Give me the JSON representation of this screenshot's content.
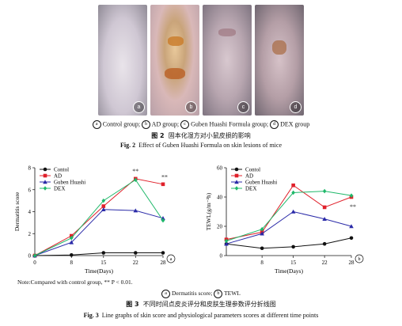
{
  "fig2": {
    "photo_labels": [
      "a",
      "b",
      "c",
      "d"
    ],
    "legend": [
      {
        "key": "a",
        "text": "Control group"
      },
      {
        "key": "b",
        "text": "AD group"
      },
      {
        "key": "c",
        "text": "Guben Huashi Formula group"
      },
      {
        "key": "d",
        "text": "DEX group"
      }
    ],
    "caption_cn_label": "图 2",
    "caption_cn_text": "固本化湿方对小鼠皮损的影响",
    "caption_en_label": "Fig. 2",
    "caption_en_text": "Effect of Guben Huashi Formula on skin lesions of mice"
  },
  "colors": {
    "control": "#111111",
    "ad": "#e0202a",
    "guben": "#2a2aa8",
    "dex": "#1fb86a"
  },
  "chart_data": [
    {
      "type": "line",
      "panel_label": "a",
      "ylabel": "Dermatitis score",
      "xlabel": "Time(Days)",
      "x": [
        0,
        8,
        15,
        22,
        28
      ],
      "xticks": [
        "0",
        "8",
        "15",
        "22",
        "28"
      ],
      "ylim": [
        0,
        8
      ],
      "yticks": [
        0,
        2,
        4,
        6,
        8
      ],
      "series": [
        {
          "name": "Contol",
          "values": [
            0,
            0.05,
            0.25,
            0.25,
            0.25
          ]
        },
        {
          "name": "AD",
          "values": [
            0,
            1.8,
            4.5,
            7.0,
            6.5
          ]
        },
        {
          "name": "Guben Huashi",
          "values": [
            0,
            1.2,
            4.2,
            4.1,
            3.4
          ]
        },
        {
          "name": "DEX",
          "values": [
            0,
            1.6,
            5.0,
            6.9,
            3.2
          ]
        }
      ],
      "annotations": [
        {
          "text": "**",
          "x": 22,
          "y": 7.5
        },
        {
          "text": "**",
          "x": 28,
          "y": 6.95
        }
      ]
    },
    {
      "type": "line",
      "panel_label": "b",
      "ylabel": "TEWL(g/m⁻²h)",
      "xlabel": "Time(Days)",
      "x": [
        0,
        8,
        15,
        22,
        28
      ],
      "xticks": [
        "8",
        "15",
        "22",
        "28"
      ],
      "ylim": [
        0,
        60
      ],
      "yticks": [
        0,
        20,
        40,
        60
      ],
      "series": [
        {
          "name": "Contol",
          "values": [
            8,
            5,
            6,
            8,
            12
          ]
        },
        {
          "name": "AD",
          "values": [
            11,
            16,
            48,
            33,
            40
          ]
        },
        {
          "name": "Guben Huashi",
          "values": [
            8,
            15,
            30,
            25,
            20
          ]
        },
        {
          "name": "DEX",
          "values": [
            10,
            18,
            43,
            44,
            41
          ]
        }
      ],
      "legend": [
        "Contol",
        "AD",
        "Guben Huashi",
        "DEX"
      ],
      "annotations": [
        {
          "text": "**",
          "x": 28,
          "y": 32
        }
      ]
    }
  ],
  "fig3": {
    "note": "Note:Compared with control group, ** P < 0.01.",
    "legend": [
      {
        "key": "a",
        "text": "Dermatitis score"
      },
      {
        "key": "b",
        "text": "TEWL"
      }
    ],
    "caption_cn_label": "图 3",
    "caption_cn_text": "不同时间点皮炎评分和皮肤生理参数评分折线图",
    "caption_en_label": "Fig. 3",
    "caption_en_text": "Line graphs of skin score and physiological parameters scores at different time points"
  }
}
